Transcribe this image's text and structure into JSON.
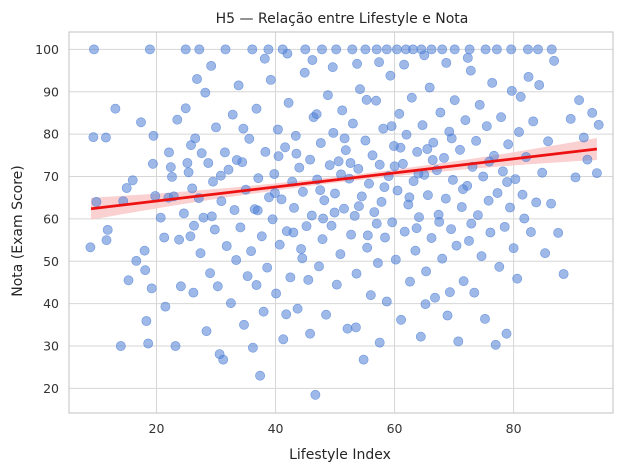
{
  "chart_data": {
    "type": "scatter",
    "title": "H5 — Relação entre Lifestyle e Nota",
    "xlabel": "Lifestyle Index",
    "ylabel": "Nota (Exam Score)",
    "xlim": [
      5.3,
      96.7
    ],
    "ylim": [
      14.2,
      104.1
    ],
    "xticks": [
      20,
      40,
      60,
      80
    ],
    "yticks": [
      20,
      30,
      40,
      50,
      60,
      70,
      80,
      90,
      100
    ],
    "grid": true,
    "point_color": "#4f7fd6",
    "point_opacity": 0.55,
    "regression": {
      "x_start": 9.0,
      "y_start": 62.4,
      "x_end": 94.0,
      "y_end": 76.5,
      "color": "#ee1111",
      "ci_color": "#f9c8c8",
      "ci_halfwidth_ends": 2.6,
      "ci_halfwidth_mid": 0.7
    },
    "points": [
      [
        9.5,
        100
      ],
      [
        18.9,
        100
      ],
      [
        24.9,
        100
      ],
      [
        27.2,
        100
      ],
      [
        31.6,
        100
      ],
      [
        36.1,
        100
      ],
      [
        38.8,
        100
      ],
      [
        41.2,
        100
      ],
      [
        45.0,
        100
      ],
      [
        47.8,
        100
      ],
      [
        50.2,
        100
      ],
      [
        52.9,
        100
      ],
      [
        55.1,
        100
      ],
      [
        57.0,
        100
      ],
      [
        58.7,
        100
      ],
      [
        60.4,
        100
      ],
      [
        61.9,
        100
      ],
      [
        63.1,
        100
      ],
      [
        64.5,
        100
      ],
      [
        66.2,
        100
      ],
      [
        68.0,
        100
      ],
      [
        70.1,
        100
      ],
      [
        72.6,
        100
      ],
      [
        75.3,
        100
      ],
      [
        77.2,
        100
      ],
      [
        79.6,
        100
      ],
      [
        82.4,
        100
      ],
      [
        84.1,
        100
      ],
      [
        86.4,
        100
      ],
      [
        9.4,
        79.3
      ],
      [
        11.5,
        79.2
      ],
      [
        13.1,
        86.0
      ],
      [
        8.9,
        53.3
      ],
      [
        9.9,
        64.0
      ],
      [
        11.8,
        57.4
      ],
      [
        11.6,
        55.0
      ],
      [
        14.0,
        30.0
      ],
      [
        14.4,
        64.2
      ],
      [
        15.0,
        67.3
      ],
      [
        15.3,
        45.5
      ],
      [
        16.0,
        69.1
      ],
      [
        16.6,
        50.1
      ],
      [
        17.4,
        82.8
      ],
      [
        18.0,
        52.5
      ],
      [
        18.1,
        47.9
      ],
      [
        18.3,
        35.9
      ],
      [
        18.6,
        30.6
      ],
      [
        19.2,
        43.6
      ],
      [
        19.4,
        73.0
      ],
      [
        19.5,
        79.6
      ],
      [
        19.8,
        65.4
      ],
      [
        20.7,
        60.3
      ],
      [
        21.3,
        55.6
      ],
      [
        21.5,
        39.3
      ],
      [
        22.1,
        75.7
      ],
      [
        22.4,
        72.2
      ],
      [
        22.6,
        69.9
      ],
      [
        22.9,
        65.3
      ],
      [
        23.2,
        30.0
      ],
      [
        23.5,
        83.4
      ],
      [
        23.8,
        55.1
      ],
      [
        24.1,
        44.1
      ],
      [
        24.6,
        61.3
      ],
      [
        24.9,
        86.1
      ],
      [
        25.2,
        73.2
      ],
      [
        25.4,
        71.0
      ],
      [
        25.7,
        55.9
      ],
      [
        26.0,
        67.2
      ],
      [
        26.2,
        42.6
      ],
      [
        26.5,
        79.0
      ],
      [
        26.8,
        93.0
      ],
      [
        27.1,
        64.9
      ],
      [
        27.4,
        51.9
      ],
      [
        27.6,
        75.5
      ],
      [
        27.9,
        60.3
      ],
      [
        28.2,
        89.8
      ],
      [
        28.4,
        33.5
      ],
      [
        28.7,
        73.2
      ],
      [
        29.0,
        47.2
      ],
      [
        29.2,
        96.1
      ],
      [
        29.5,
        68.8
      ],
      [
        29.8,
        57.5
      ],
      [
        30.0,
        81.6
      ],
      [
        30.3,
        44.1
      ],
      [
        30.6,
        28.1
      ],
      [
        30.9,
        64.2
      ],
      [
        31.2,
        26.8
      ],
      [
        31.5,
        75.7
      ],
      [
        31.8,
        53.6
      ],
      [
        32.1,
        71.6
      ],
      [
        32.5,
        40.1
      ],
      [
        32.8,
        84.6
      ],
      [
        33.1,
        62.1
      ],
      [
        33.4,
        50.3
      ],
      [
        33.8,
        91.5
      ],
      [
        34.1,
        58.0
      ],
      [
        34.4,
        73.4
      ],
      [
        34.7,
        35.0
      ],
      [
        35.0,
        66.9
      ],
      [
        35.3,
        46.5
      ],
      [
        35.6,
        78.9
      ],
      [
        35.9,
        52.4
      ],
      [
        36.2,
        29.6
      ],
      [
        36.5,
        62.3
      ],
      [
        36.8,
        86.0
      ],
      [
        37.1,
        69.6
      ],
      [
        37.4,
        23.0
      ],
      [
        37.7,
        55.9
      ],
      [
        38.0,
        38.1
      ],
      [
        38.3,
        75.8
      ],
      [
        38.6,
        48.5
      ],
      [
        38.9,
        65.1
      ],
      [
        39.2,
        92.8
      ],
      [
        39.5,
        59.9
      ],
      [
        39.8,
        70.6
      ],
      [
        40.1,
        42.4
      ],
      [
        40.4,
        81.1
      ],
      [
        40.7,
        53.9
      ],
      [
        41.0,
        64.6
      ],
      [
        41.3,
        31.6
      ],
      [
        41.6,
        76.9
      ],
      [
        41.9,
        57.1
      ],
      [
        42.2,
        87.4
      ],
      [
        42.5,
        46.2
      ],
      [
        42.8,
        68.8
      ],
      [
        43.1,
        62.6
      ],
      [
        43.4,
        79.6
      ],
      [
        43.7,
        38.8
      ],
      [
        44.0,
        72.1
      ],
      [
        44.3,
        52.9
      ],
      [
        44.6,
        66.4
      ],
      [
        44.9,
        94.5
      ],
      [
        45.2,
        58.3
      ],
      [
        45.5,
        45.6
      ],
      [
        45.8,
        74.0
      ],
      [
        46.1,
        60.8
      ],
      [
        46.4,
        84.0
      ],
      [
        46.7,
        18.5
      ],
      [
        47.0,
        69.3
      ],
      [
        47.3,
        48.8
      ],
      [
        47.6,
        77.9
      ],
      [
        47.9,
        55.2
      ],
      [
        48.2,
        64.4
      ],
      [
        48.5,
        37.4
      ],
      [
        48.8,
        89.2
      ],
      [
        49.1,
        72.7
      ],
      [
        49.4,
        58.4
      ],
      [
        49.7,
        80.3
      ],
      [
        50.0,
        66.0
      ],
      [
        50.3,
        44.5
      ],
      [
        50.6,
        73.6
      ],
      [
        50.9,
        51.7
      ],
      [
        51.2,
        85.6
      ],
      [
        51.5,
        62.4
      ],
      [
        51.8,
        76.2
      ],
      [
        52.1,
        34.1
      ],
      [
        52.4,
        69.5
      ],
      [
        52.7,
        56.3
      ],
      [
        53.0,
        82.5
      ],
      [
        53.3,
        60.7
      ],
      [
        53.6,
        47.1
      ],
      [
        53.9,
        71.8
      ],
      [
        54.2,
        90.6
      ],
      [
        54.5,
        65.3
      ],
      [
        54.8,
        26.8
      ],
      [
        55.1,
        78.5
      ],
      [
        55.4,
        53.2
      ],
      [
        55.7,
        68.3
      ],
      [
        56.0,
        42.0
      ],
      [
        56.3,
        75.0
      ],
      [
        56.6,
        61.6
      ],
      [
        56.9,
        87.9
      ],
      [
        57.2,
        49.6
      ],
      [
        57.5,
        72.8
      ],
      [
        57.8,
        64.0
      ],
      [
        58.1,
        81.3
      ],
      [
        58.4,
        55.6
      ],
      [
        58.7,
        40.5
      ],
      [
        59.0,
        70.1
      ],
      [
        59.3,
        93.8
      ],
      [
        59.6,
        59.2
      ],
      [
        59.9,
        77.2
      ],
      [
        60.2,
        50.4
      ],
      [
        60.5,
        66.7
      ],
      [
        60.8,
        84.8
      ],
      [
        61.1,
        36.2
      ],
      [
        61.4,
        73.0
      ],
      [
        61.7,
        57.0
      ],
      [
        62.0,
        79.9
      ],
      [
        62.3,
        63.4
      ],
      [
        62.6,
        45.2
      ],
      [
        62.9,
        88.6
      ],
      [
        63.2,
        68.9
      ],
      [
        63.5,
        52.5
      ],
      [
        63.8,
        75.8
      ],
      [
        64.1,
        60.4
      ],
      [
        64.4,
        32.2
      ],
      [
        64.7,
        82.1
      ],
      [
        65.0,
        70.4
      ],
      [
        65.3,
        47.6
      ],
      [
        65.6,
        65.6
      ],
      [
        65.9,
        91.0
      ],
      [
        66.2,
        55.5
      ],
      [
        66.5,
        78.0
      ],
      [
        66.8,
        41.4
      ],
      [
        67.1,
        71.5
      ],
      [
        67.4,
        61.0
      ],
      [
        67.7,
        85.1
      ],
      [
        68.0,
        50.6
      ],
      [
        68.3,
        74.4
      ],
      [
        68.6,
        64.8
      ],
      [
        68.9,
        37.2
      ],
      [
        69.2,
        80.6
      ],
      [
        69.5,
        57.6
      ],
      [
        69.8,
        69.2
      ],
      [
        70.1,
        88.0
      ],
      [
        70.4,
        53.7
      ],
      [
        70.7,
        31.1
      ],
      [
        71.0,
        76.3
      ],
      [
        71.3,
        62.8
      ],
      [
        71.6,
        45.3
      ],
      [
        71.9,
        83.3
      ],
      [
        72.2,
        67.8
      ],
      [
        72.5,
        54.8
      ],
      [
        72.8,
        95.0
      ],
      [
        73.1,
        72.3
      ],
      [
        73.4,
        42.6
      ],
      [
        73.7,
        78.4
      ],
      [
        74.0,
        60.9
      ],
      [
        74.3,
        86.9
      ],
      [
        74.6,
        51.2
      ],
      [
        74.9,
        70.0
      ],
      [
        75.2,
        36.4
      ],
      [
        75.5,
        81.9
      ],
      [
        75.8,
        64.3
      ],
      [
        76.1,
        56.8
      ],
      [
        76.4,
        92.1
      ],
      [
        76.7,
        74.9
      ],
      [
        77.0,
        30.3
      ],
      [
        77.3,
        66.1
      ],
      [
        77.6,
        48.7
      ],
      [
        77.9,
        84.0
      ],
      [
        78.2,
        71.2
      ],
      [
        78.5,
        58.1
      ],
      [
        78.8,
        32.9
      ],
      [
        79.1,
        77.6
      ],
      [
        79.4,
        62.7
      ],
      [
        79.7,
        90.2
      ],
      [
        80.0,
        53.1
      ],
      [
        80.3,
        69.4
      ],
      [
        80.6,
        45.9
      ],
      [
        80.9,
        80.5
      ],
      [
        81.2,
        88.8
      ],
      [
        81.5,
        65.7
      ],
      [
        81.8,
        60.1
      ],
      [
        82.1,
        74.6
      ],
      [
        82.5,
        93.5
      ],
      [
        82.9,
        56.9
      ],
      [
        83.3,
        83.0
      ],
      [
        83.8,
        63.9
      ],
      [
        84.3,
        91.6
      ],
      [
        84.8,
        70.9
      ],
      [
        85.3,
        51.9
      ],
      [
        85.8,
        78.3
      ],
      [
        86.3,
        63.6
      ],
      [
        86.8,
        97.3
      ],
      [
        87.5,
        56.7
      ],
      [
        88.4,
        47.0
      ],
      [
        89.6,
        83.6
      ],
      [
        90.4,
        69.8
      ],
      [
        91.0,
        88.0
      ],
      [
        91.8,
        79.2
      ],
      [
        92.4,
        74.0
      ],
      [
        93.2,
        85.0
      ],
      [
        94.0,
        70.8
      ],
      [
        94.3,
        82.2
      ],
      [
        22.0,
        65.0
      ],
      [
        26.3,
        58.4
      ],
      [
        30.8,
        70.2
      ],
      [
        34.6,
        81.3
      ],
      [
        39.9,
        66.1
      ],
      [
        43.5,
        75.4
      ],
      [
        46.9,
        84.7
      ],
      [
        49.9,
        61.5
      ],
      [
        52.6,
        73.2
      ],
      [
        55.3,
        88.1
      ],
      [
        58.3,
        67.5
      ],
      [
        61.0,
        76.8
      ],
      [
        63.7,
        57.8
      ],
      [
        66.4,
        73.9
      ],
      [
        69.6,
        79.0
      ],
      [
        72.9,
        58.9
      ],
      [
        75.9,
        73.5
      ],
      [
        78.9,
        68.7
      ],
      [
        43.0,
        56.8
      ],
      [
        47.5,
        66.8
      ],
      [
        51.0,
        70.5
      ],
      [
        54.0,
        63.0
      ],
      [
        57.0,
        58.9
      ],
      [
        60.0,
        72.4
      ],
      [
        62.5,
        65.1
      ],
      [
        65.5,
        76.5
      ],
      [
        37.0,
        62.0
      ],
      [
        40.5,
        74.8
      ],
      [
        44.5,
        50.7
      ],
      [
        48.0,
        60.1
      ],
      [
        51.6,
        79.0
      ],
      [
        55.5,
        56.1
      ],
      [
        59.5,
        81.9
      ],
      [
        64.0,
        70.7
      ],
      [
        67.5,
        59.3
      ],
      [
        71.5,
        67.0
      ],
      [
        33.5,
        73.9
      ],
      [
        29.3,
        60.6
      ],
      [
        25.8,
        77.4
      ],
      [
        36.8,
        44.4
      ],
      [
        41.8,
        37.5
      ],
      [
        45.8,
        32.9
      ],
      [
        53.5,
        34.4
      ],
      [
        57.5,
        30.8
      ],
      [
        65.2,
        39.9
      ],
      [
        69.3,
        42.7
      ],
      [
        38.2,
        97.8
      ],
      [
        42.0,
        99.0
      ],
      [
        46.2,
        97.5
      ],
      [
        49.6,
        95.8
      ],
      [
        53.7,
        96.6
      ],
      [
        57.4,
        97.0
      ],
      [
        61.6,
        96.4
      ],
      [
        65.0,
        98.6
      ],
      [
        68.7,
        96.8
      ],
      [
        72.3,
        98.0
      ]
    ]
  }
}
